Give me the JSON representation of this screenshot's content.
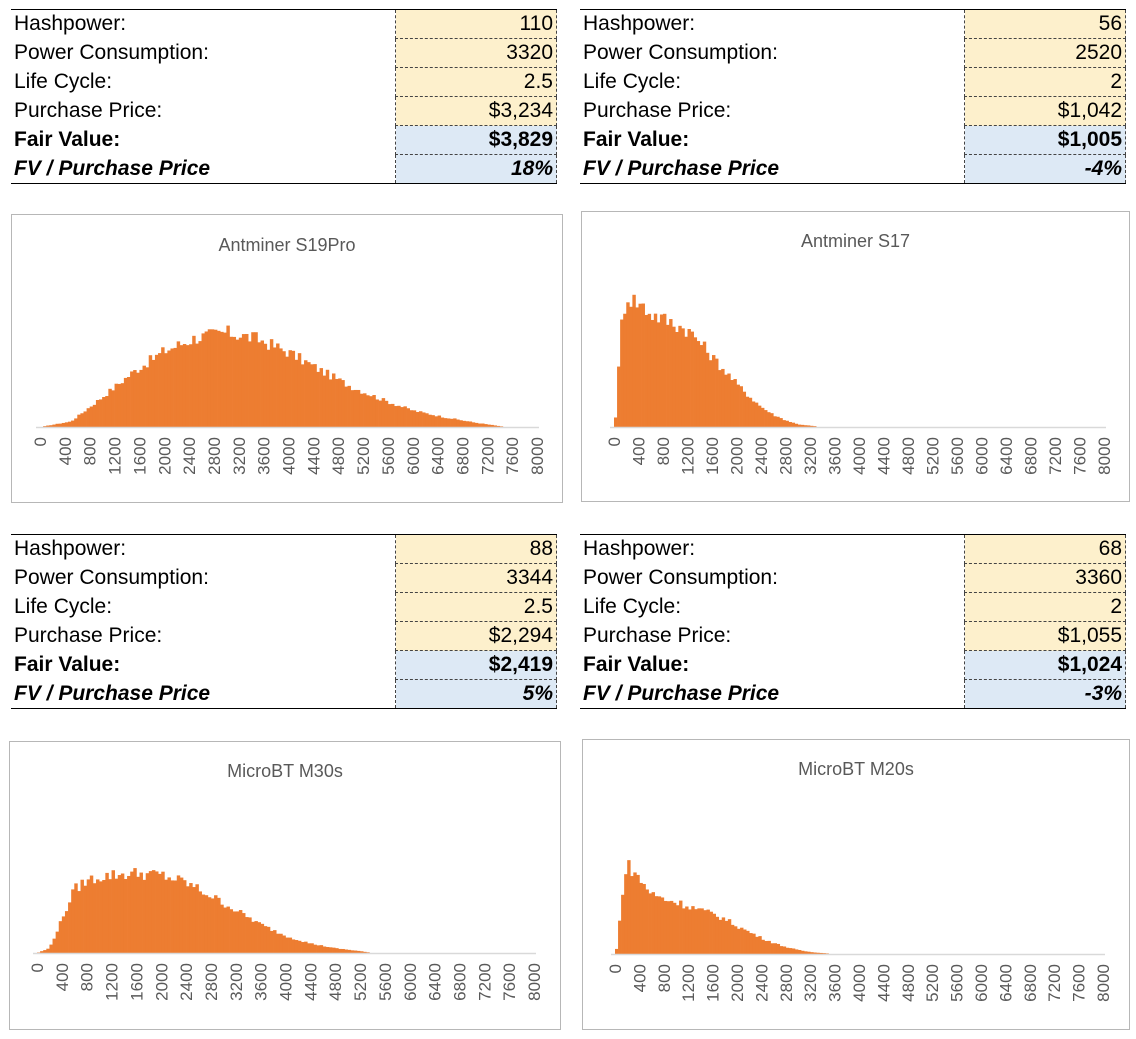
{
  "colors": {
    "bar": "#ed7d31",
    "input_cell": "#fdf0cc",
    "output_cell": "#dde9f5"
  },
  "tables": [
    {
      "rows": [
        {
          "label": "Hashpower:",
          "value": "110"
        },
        {
          "label": "Power Consumption:",
          "value": "3320"
        },
        {
          "label": "Life Cycle:",
          "value": "2.5"
        },
        {
          "label": "Purchase Price:",
          "value": "$3,234"
        },
        {
          "label": "Fair Value:",
          "value": "$3,829"
        },
        {
          "label": "FV / Purchase Price",
          "value": "18%"
        }
      ]
    },
    {
      "rows": [
        {
          "label": "Hashpower:",
          "value": "56"
        },
        {
          "label": "Power Consumption:",
          "value": "2520"
        },
        {
          "label": "Life Cycle:",
          "value": "2"
        },
        {
          "label": "Purchase Price:",
          "value": "$1,042"
        },
        {
          "label": "Fair Value:",
          "value": "$1,005"
        },
        {
          "label": "FV / Purchase Price",
          "value": "-4%"
        }
      ]
    },
    {
      "rows": [
        {
          "label": "Hashpower:",
          "value": "88"
        },
        {
          "label": "Power Consumption:",
          "value": "3344"
        },
        {
          "label": "Life Cycle:",
          "value": "2.5"
        },
        {
          "label": "Purchase Price:",
          "value": "$2,294"
        },
        {
          "label": "Fair Value:",
          "value": "$2,419"
        },
        {
          "label": "FV / Purchase Price",
          "value": "5%"
        }
      ]
    },
    {
      "rows": [
        {
          "label": "Hashpower:",
          "value": "68"
        },
        {
          "label": "Power Consumption:",
          "value": "3360"
        },
        {
          "label": "Life Cycle:",
          "value": "2"
        },
        {
          "label": "Purchase Price:",
          "value": "$1,055"
        },
        {
          "label": "Fair Value:",
          "value": "$1,024"
        },
        {
          "label": "FV / Purchase Price",
          "value": "-3%"
        }
      ]
    }
  ],
  "chart_data": [
    {
      "type": "bar",
      "title": "Antminer S19Pro",
      "x_ticks": [
        "0",
        "400",
        "800",
        "1200",
        "1600",
        "2000",
        "2400",
        "2800",
        "3200",
        "3600",
        "4000",
        "4400",
        "4800",
        "5200",
        "5600",
        "6000",
        "6400",
        "6800",
        "7200",
        "7600",
        "8000"
      ],
      "x_range": [
        0,
        8000
      ],
      "bin_width": 50,
      "values_relative": true,
      "x": [
        0,
        500,
        1000,
        1500,
        2000,
        2500,
        3000,
        3500,
        4000,
        4500,
        5000,
        5500,
        6000,
        6500,
        7000,
        7500,
        8000
      ],
      "values": [
        0,
        0.05,
        0.27,
        0.5,
        0.69,
        0.81,
        0.86,
        0.8,
        0.68,
        0.52,
        0.37,
        0.25,
        0.15,
        0.09,
        0.04,
        0,
        0
      ]
    },
    {
      "type": "bar",
      "title": "Antminer S17",
      "x_ticks": [
        "0",
        "400",
        "800",
        "1200",
        "1600",
        "2000",
        "2400",
        "2800",
        "3200",
        "3600",
        "4000",
        "4400",
        "4800",
        "5200",
        "5600",
        "6000",
        "6400",
        "6800",
        "7200",
        "7600",
        "8000"
      ],
      "x_range": [
        0,
        8000
      ],
      "bin_width": 50,
      "values_relative": true,
      "x": [
        0,
        50,
        100,
        200,
        400,
        600,
        800,
        1000,
        1200,
        1400,
        1600,
        1800,
        2000,
        2200,
        2400,
        2600,
        2800,
        3000,
        3200,
        3400,
        8000
      ],
      "values": [
        0,
        0.15,
        0.7,
        0.97,
        0.92,
        0.84,
        0.8,
        0.76,
        0.72,
        0.63,
        0.52,
        0.42,
        0.32,
        0.23,
        0.15,
        0.09,
        0.05,
        0.02,
        0.01,
        0,
        0
      ]
    },
    {
      "type": "bar",
      "title": "MicroBT M30s",
      "x_ticks": [
        "0",
        "400",
        "800",
        "1200",
        "1600",
        "2000",
        "2400",
        "2800",
        "3200",
        "3600",
        "4000",
        "4400",
        "4800",
        "5200",
        "5600",
        "6000",
        "6400",
        "6800",
        "7200",
        "7600",
        "8000"
      ],
      "x_range": [
        0,
        8000
      ],
      "bin_width": 50,
      "values_relative": true,
      "x": [
        0,
        200,
        400,
        600,
        800,
        1000,
        1200,
        1600,
        2000,
        2400,
        2800,
        3200,
        3600,
        4000,
        4400,
        4800,
        5200,
        5400,
        8000
      ],
      "values": [
        0,
        0.05,
        0.35,
        0.67,
        0.76,
        0.8,
        0.82,
        0.84,
        0.82,
        0.74,
        0.6,
        0.45,
        0.3,
        0.18,
        0.1,
        0.05,
        0.02,
        0,
        0
      ]
    },
    {
      "type": "bar",
      "title": "MicroBT M20s",
      "x_ticks": [
        "0",
        "400",
        "800",
        "1200",
        "1600",
        "2000",
        "2400",
        "2800",
        "3200",
        "3600",
        "4000",
        "4400",
        "4800",
        "5200",
        "5600",
        "6000",
        "6400",
        "6800",
        "7200",
        "7600",
        "8000"
      ],
      "x_range": [
        0,
        8000
      ],
      "bin_width": 50,
      "values_relative": true,
      "x": [
        0,
        50,
        100,
        200,
        400,
        600,
        800,
        1000,
        1200,
        1400,
        1600,
        1800,
        2000,
        2200,
        2400,
        2600,
        2800,
        3000,
        3200,
        3400,
        3600,
        8000
      ],
      "values": [
        0,
        0.1,
        0.55,
        0.9,
        0.75,
        0.6,
        0.55,
        0.52,
        0.48,
        0.44,
        0.4,
        0.35,
        0.28,
        0.22,
        0.16,
        0.11,
        0.07,
        0.04,
        0.02,
        0.01,
        0,
        0
      ]
    }
  ]
}
